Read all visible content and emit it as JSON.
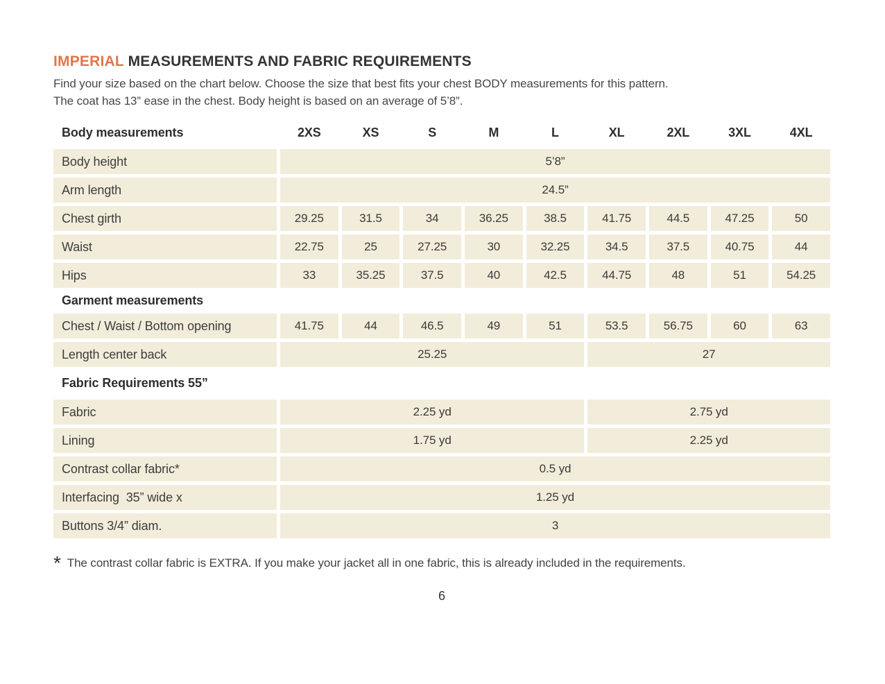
{
  "page": {
    "title_highlight": "IMPERIAL",
    "title_rest": "MEASUREMENTS AND FABRIC REQUIREMENTS",
    "intro_line1": "Find your size based on the chart below. Choose the size that best fits your chest BODY measurements for this pattern.",
    "intro_line2": "The coat has 13” ease in the chest. Body height is based on an average of 5’8”.",
    "footnote_star": "*",
    "footnote": "The contrast collar fabric is EXTRA. If you make your jacket all in one fabric, this is already included in the requirements.",
    "page_number": "6"
  },
  "colors": {
    "accent_orange": "#e0764b",
    "cell_beige": "#f2ecda"
  },
  "table": {
    "header_label": "Body measurements",
    "sizes": [
      "2XS",
      "XS",
      "S",
      "M",
      "L",
      "XL",
      "2XL",
      "3XL",
      "4XL"
    ],
    "rows": [
      {
        "type": "span",
        "label": "Body height",
        "value": "5’8”"
      },
      {
        "type": "span",
        "label": "Arm length",
        "value": "24.5”"
      },
      {
        "type": "cells",
        "label": "Chest girth",
        "values": [
          "29.25",
          "31.5",
          "34",
          "36.25",
          "38.5",
          "41.75",
          "44.5",
          "47.25",
          "50"
        ]
      },
      {
        "type": "cells",
        "label": "Waist",
        "values": [
          "22.75",
          "25",
          "27.25",
          "30",
          "32.25",
          "34.5",
          "37.5",
          "40.75",
          "44"
        ]
      },
      {
        "type": "cells",
        "label": "Hips",
        "values": [
          "33",
          "35.25",
          "37.5",
          "40",
          "42.5",
          "44.75",
          "48",
          "51",
          "54.25"
        ]
      },
      {
        "type": "section",
        "label": "Garment measurements"
      },
      {
        "type": "cells",
        "label": "Chest / Waist / Bottom opening",
        "values": [
          "41.75",
          "44",
          "46.5",
          "49",
          "51",
          "53.5",
          "56.75",
          "60",
          "63"
        ]
      },
      {
        "type": "split",
        "label": "Length center back",
        "value_left": "25.25",
        "value_right": "27"
      },
      {
        "type": "section",
        "label": "Fabric Requirements 55”"
      },
      {
        "type": "split",
        "label": "Fabric",
        "value_left": "2.25 yd",
        "value_right": "2.75 yd"
      },
      {
        "type": "split",
        "label": "Lining",
        "value_left": "1.75 yd",
        "value_right": "2.25 yd"
      },
      {
        "type": "span",
        "label": "Contrast collar fabric*",
        "value": "0.5 yd"
      },
      {
        "type": "span",
        "label": "Interfacing  35” wide x",
        "value": "1.25 yd"
      },
      {
        "type": "span",
        "label": "Buttons 3/4” diam.",
        "value": "3"
      }
    ]
  }
}
